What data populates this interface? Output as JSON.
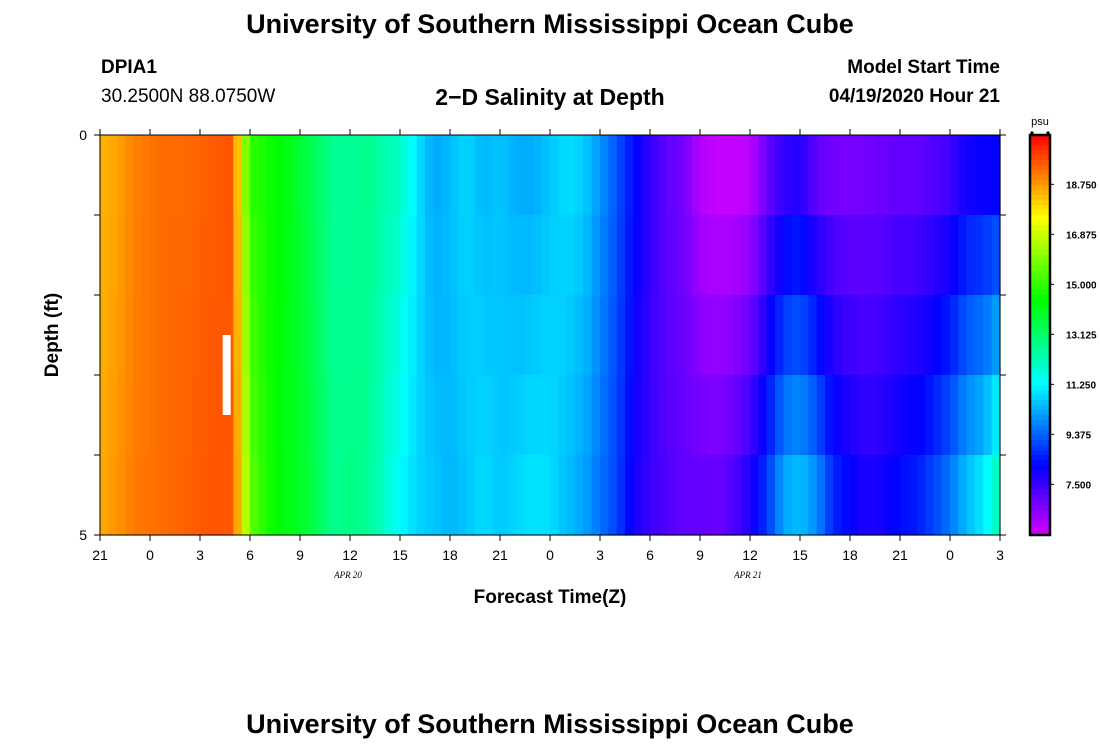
{
  "header": {
    "title": "University of Southern Mississippi Ocean Cube",
    "station_id": "DPIA1",
    "coordinates": "30.2500N 88.0750W",
    "chart_title": "2−D Salinity at Depth",
    "model_label": "Model Start Time",
    "model_time": "04/19/2020 Hour 21"
  },
  "footer": {
    "title": "University of Southern Mississippi Ocean Cube"
  },
  "chart_data": {
    "type": "heatmap",
    "title": "2−D Salinity at Depth",
    "xlabel": "Forecast Time(Z)",
    "ylabel": "Depth (ft)",
    "x_tick_labels": [
      "21",
      "0",
      "3",
      "6",
      "9",
      "12",
      "15",
      "18",
      "21",
      "0",
      "3",
      "6",
      "9",
      "12",
      "15",
      "18",
      "21",
      "0",
      "3"
    ],
    "x_date_labels": [
      {
        "text": "APR 20",
        "x_index": 5
      },
      {
        "text": "APR 21",
        "x_index": 13
      }
    ],
    "y_tick_labels": [
      "0",
      "5"
    ],
    "ylim": [
      0,
      5
    ],
    "x_range_hours": [
      0,
      54
    ],
    "depth_levels": 5,
    "colorbar": {
      "unit": "psu",
      "range": [
        5.6,
        20.6
      ],
      "tick_labels": [
        "18.750",
        "16.875",
        "15.000",
        "13.125",
        "11.250",
        "9.375",
        "7.500"
      ],
      "tick_values": [
        18.75,
        16.875,
        15.0,
        13.125,
        11.25,
        9.375,
        7.5
      ]
    },
    "salinity_profile": {
      "hours": [
        0,
        1,
        2,
        3,
        4,
        5,
        6,
        7,
        8,
        8.5,
        9,
        10,
        11,
        12,
        13,
        14,
        15,
        16,
        17,
        18,
        19,
        20,
        21,
        22,
        23,
        24,
        25,
        26,
        27,
        28,
        29,
        30,
        31,
        32,
        33,
        34,
        35,
        36,
        37,
        38,
        39,
        40,
        41,
        42,
        43,
        44,
        45,
        46,
        47,
        48,
        49,
        50,
        51,
        52,
        53,
        54
      ],
      "surface": [
        18.4,
        18.6,
        19.0,
        19.2,
        19.3,
        19.3,
        19.4,
        19.5,
        19.6,
        17.0,
        15.0,
        14.6,
        14.3,
        13.8,
        13.2,
        12.6,
        12.5,
        12.7,
        12.3,
        12.0,
        11.0,
        10.2,
        10.5,
        10.8,
        10.4,
        10.6,
        10.3,
        10.3,
        10.6,
        10.9,
        10.7,
        10.0,
        9.2,
        8.3,
        7.6,
        7.0,
        6.8,
        6.0,
        5.8,
        5.8,
        5.9,
        6.9,
        7.6,
        7.8,
        7.0,
        6.8,
        6.7,
        6.8,
        6.9,
        7.0,
        7.0,
        7.2,
        7.4,
        8.0,
        8.1,
        8.2
      ],
      "bottom": [
        18.5,
        18.8,
        19.1,
        19.2,
        19.3,
        19.4,
        19.5,
        19.6,
        19.5,
        17.6,
        15.6,
        14.7,
        14.2,
        14.0,
        13.4,
        12.6,
        12.8,
        12.6,
        12.0,
        11.3,
        10.8,
        10.6,
        10.4,
        10.6,
        10.9,
        10.6,
        10.8,
        11.0,
        10.9,
        10.5,
        10.2,
        9.6,
        9.0,
        8.0,
        7.5,
        7.2,
        7.0,
        7.0,
        6.9,
        7.2,
        7.8,
        8.8,
        10.2,
        10.5,
        9.9,
        8.6,
        8.2,
        7.8,
        8.0,
        8.3,
        8.5,
        9.0,
        9.6,
        10.5,
        11.0,
        12.3
      ]
    },
    "missing_segment": {
      "hour": 7.6,
      "depth_from": 2.5,
      "depth_to": 3.5
    }
  }
}
